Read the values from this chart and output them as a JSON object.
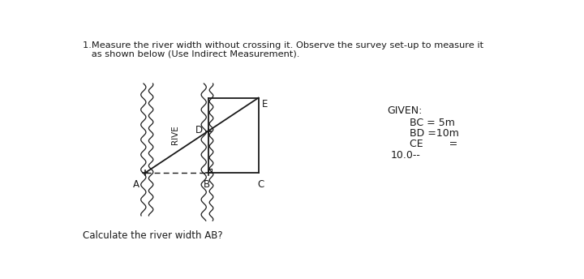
{
  "title_line1": "1.Measure the river width without crossing it. Observe the survey set-up to measure it",
  "title_line2": "   as shown below (Use Indirect Measurement).",
  "bottom_text": "Calculate the river width AB?",
  "given_title": "GIVEN:",
  "given_bc": "BC = 5m",
  "given_bd": "BD =10m",
  "given_ce": "CE        =",
  "given_extra": "10.0--",
  "bg_color": "#ffffff",
  "line_color": "#1a1a1a",
  "label_A": "A",
  "label_B": "B",
  "label_C": "C",
  "label_D": "D",
  "label_E": "E",
  "label_RIVE": "RIVE"
}
